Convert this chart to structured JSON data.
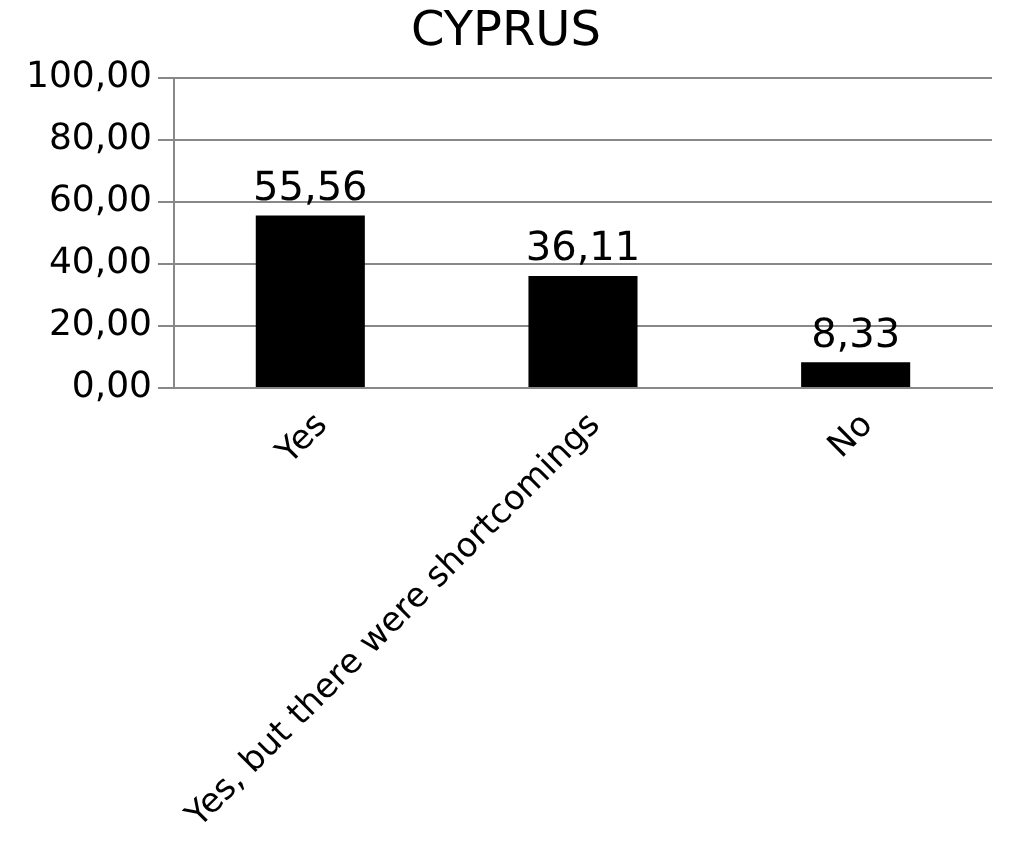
{
  "chart_data": {
    "type": "bar",
    "title": "CYPRUS",
    "categories": [
      "Yes",
      "Yes, but there were shortcomings",
      "No"
    ],
    "values": [
      55.56,
      36.11,
      8.33
    ],
    "value_labels": [
      "55,56",
      "36,11",
      "8,33"
    ],
    "color": "#000000",
    "ylim": [
      0,
      100
    ],
    "yticks": [
      {
        "value": 0,
        "label": "0,00"
      },
      {
        "value": 20,
        "label": "20,00"
      },
      {
        "value": 40,
        "label": "40,00"
      },
      {
        "value": 60,
        "label": "60,00"
      },
      {
        "value": 80,
        "label": "80,00"
      },
      {
        "value": 100,
        "label": "100,00"
      }
    ],
    "grid": "y",
    "legend": false
  }
}
